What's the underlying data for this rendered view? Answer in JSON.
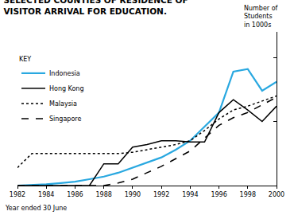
{
  "chart_data": {
    "type": "line",
    "title": "SELECTED COUNTIES OF RESIDENCE OF VISITOR ARRIVAL FOR EDUCATION.",
    "x_label": "Year ended 30 June",
    "y_label": "Number of Students in 1000s",
    "legend_title": "KEY",
    "x": [
      1982,
      1983,
      1984,
      1985,
      1986,
      1987,
      1988,
      1989,
      1990,
      1991,
      1992,
      1993,
      1994,
      1995,
      1996,
      1997,
      1998,
      1999,
      2000
    ],
    "series": [
      {
        "name": "Indonesia",
        "color": "#29a8e0",
        "line_style": "solid",
        "values": [
          0,
          0.05,
          0.1,
          0.2,
          0.3,
          0.5,
          0.7,
          1.0,
          1.4,
          1.8,
          2.2,
          2.8,
          3.5,
          4.6,
          5.7,
          8.9,
          9.1,
          7.4,
          8.1
        ]
      },
      {
        "name": "Hong Kong",
        "color": "#000000",
        "line_style": "solid",
        "values": [
          0,
          0,
          0,
          0,
          0,
          0,
          1.7,
          1.7,
          3.0,
          3.2,
          3.5,
          3.5,
          3.4,
          3.4,
          5.7,
          6.7,
          5.9,
          5.0,
          6.2
        ]
      },
      {
        "name": "Malaysia",
        "color": "#000000",
        "line_style": "dot",
        "values": [
          1.4,
          2.5,
          2.5,
          2.5,
          2.5,
          2.5,
          2.5,
          2.5,
          2.6,
          2.8,
          3.0,
          3.2,
          3.5,
          4.3,
          5.2,
          5.9,
          6.2,
          6.6,
          7.0
        ]
      },
      {
        "name": "Singapore",
        "color": "#000000",
        "line_style": "dash",
        "values": [
          0,
          0,
          0,
          0,
          0,
          0,
          0,
          0.2,
          0.5,
          1.0,
          1.5,
          2.1,
          2.7,
          3.7,
          4.7,
          5.3,
          5.7,
          6.3,
          6.9
        ]
      }
    ],
    "xlim": [
      1982,
      2000
    ],
    "xticks": [
      1982,
      1984,
      1986,
      1988,
      1990,
      1992,
      1994,
      1996,
      1998,
      2000
    ],
    "ylim": [
      0,
      12
    ],
    "yticks": [
      0,
      5,
      10
    ],
    "grid": false,
    "legend": "upper left",
    "tick_labels": "x"
  }
}
